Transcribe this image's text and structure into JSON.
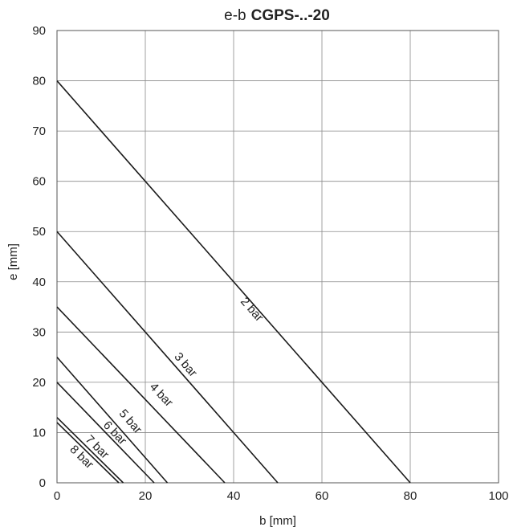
{
  "chart_data": {
    "type": "line",
    "title_prefix": "e-b",
    "title": "CGPS-..-20",
    "xlabel": "b [mm]",
    "ylabel": "e [mm]",
    "xlim": [
      0,
      100
    ],
    "ylim": [
      0,
      90
    ],
    "xticks": [
      0,
      20,
      40,
      60,
      80,
      100
    ],
    "yticks": [
      0,
      10,
      20,
      30,
      40,
      50,
      60,
      70,
      80,
      90
    ],
    "grid": true,
    "legend": "none",
    "series": [
      {
        "name": "2 bar",
        "x": [
          0,
          80
        ],
        "y": [
          80,
          0
        ]
      },
      {
        "name": "3 bar",
        "x": [
          0,
          50
        ],
        "y": [
          50,
          0
        ]
      },
      {
        "name": "4 bar",
        "x": [
          0,
          38
        ],
        "y": [
          35,
          0
        ]
      },
      {
        "name": "5 bar",
        "x": [
          0,
          25
        ],
        "y": [
          25,
          0
        ]
      },
      {
        "name": "6 bar",
        "x": [
          0,
          22
        ],
        "y": [
          20,
          0
        ]
      },
      {
        "name": "7 bar",
        "x": [
          0,
          15
        ],
        "y": [
          13,
          0
        ]
      },
      {
        "name": "8 bar",
        "x": [
          0,
          14
        ],
        "y": [
          12,
          0
        ]
      }
    ]
  }
}
